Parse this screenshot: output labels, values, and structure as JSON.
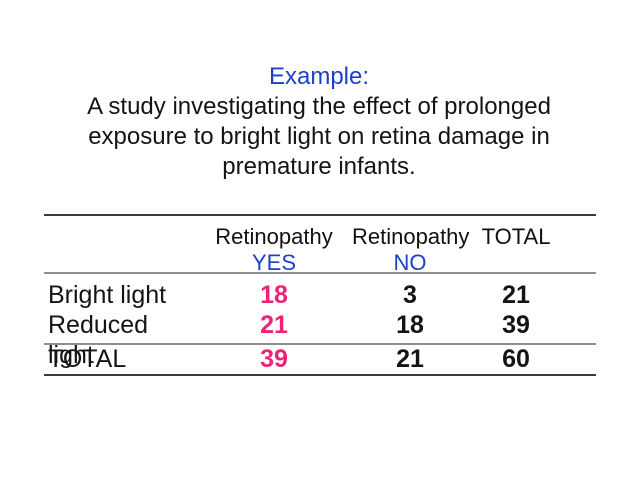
{
  "slide": {
    "title": "Example:",
    "subtitle_lines": [
      "A study investigating the effect of prolonged",
      "exposure to bright light on retina damage in",
      "premature infants."
    ],
    "colors": {
      "background": "#FFFFFF",
      "title_blue": "#1E3FC8",
      "highlight_pink": "#EE2277",
      "body_text": "#141414",
      "rule_dark": "#3B3B3B",
      "rule_light": "#8F8F8F"
    }
  },
  "table": {
    "columns": [
      {
        "line1": "",
        "line2": ""
      },
      {
        "line1": "Retinopathy",
        "line2": "YES"
      },
      {
        "line1": "Retinopathy",
        "line2": "NO"
      },
      {
        "line1": "TOTAL",
        "line2": ""
      }
    ],
    "rows": [
      {
        "label": "Bright light",
        "yes": "18",
        "no": "3",
        "total": "21"
      },
      {
        "label": "Reduced light",
        "yes": "21",
        "no": "18",
        "total": "39"
      },
      {
        "label": "TOTAL",
        "yes": "39",
        "no": "21",
        "total": "60"
      }
    ]
  }
}
